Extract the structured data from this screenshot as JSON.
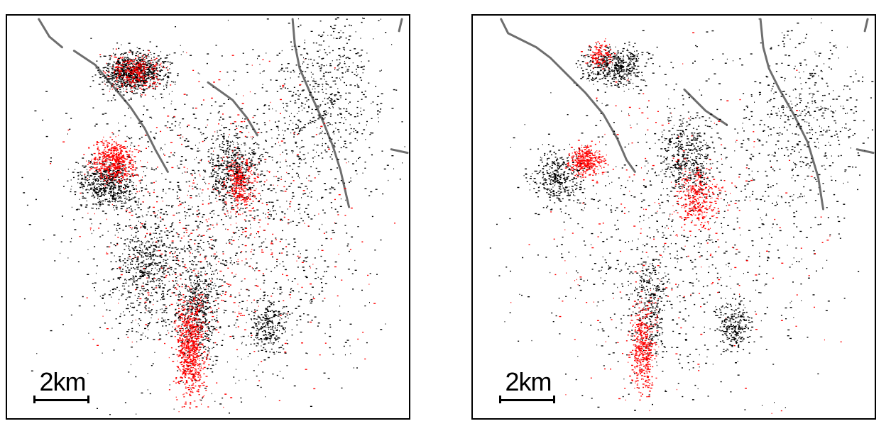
{
  "panels": [
    {
      "id": "left",
      "scale_label": "2km"
    },
    {
      "id": "right",
      "scale_label": "2km"
    }
  ],
  "colors": {
    "frame": "#000000",
    "background": "#ffffff",
    "fault_line": "#6e6e6e",
    "dots_black": "#000000",
    "dots_red": "#ff0000"
  }
}
